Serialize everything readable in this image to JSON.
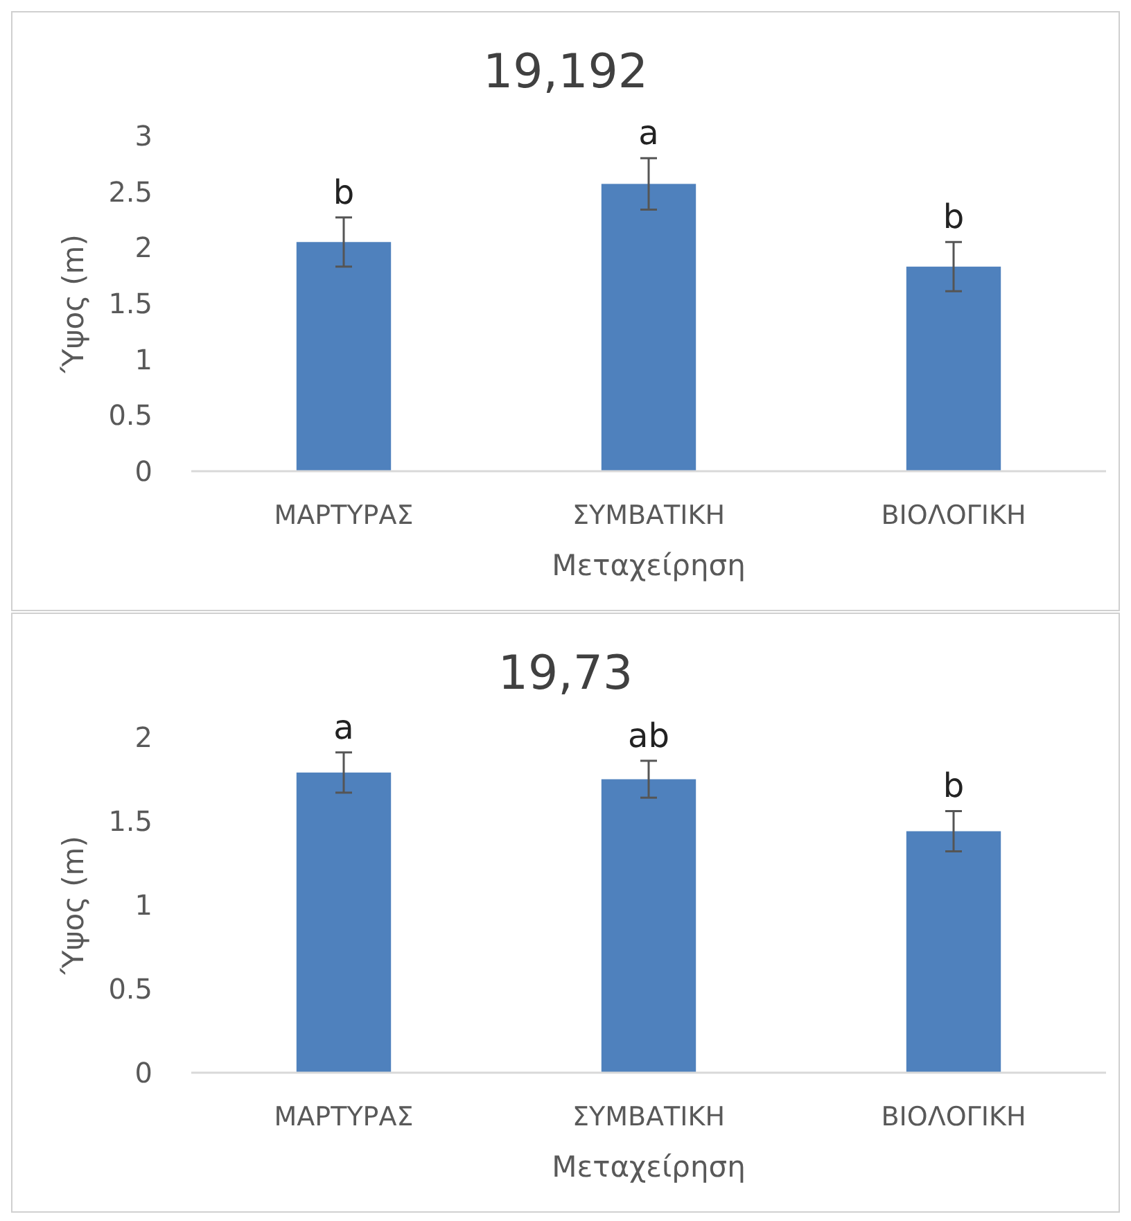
{
  "chart_data": [
    {
      "type": "bar",
      "title": "19,192",
      "xlabel": "Μεταχείρηση",
      "ylabel": "Ύψος (m)",
      "categories": [
        "ΜΑΡΤΥΡΑΣ",
        "ΣΥΜΒΑΤΙΚΗ",
        "ΒΙΟΛΟΓΙΚΗ"
      ],
      "values": [
        2.05,
        2.57,
        1.83
      ],
      "errors": [
        0.22,
        0.23,
        0.22
      ],
      "color": "#4f81bd",
      "ylim": [
        0,
        3
      ],
      "yticks": [
        0,
        {
          "value": 0.5,
          "label": "0.5"
        },
        1,
        {
          "value": 1.5,
          "label": "1.5"
        },
        2,
        {
          "value": 2.5,
          "label": "2.5"
        },
        3
      ],
      "grid": false,
      "annotations": [
        {
          "text": "b",
          "x": "ΜΑΡΤΥΡΑΣ",
          "y": 2.27
        },
        {
          "text": "a",
          "x": "ΣΥΜΒΑΤΙΚΗ",
          "y": 2.8
        },
        {
          "text": "b",
          "x": "ΒΙΟΛΟΓΙΚΗ",
          "y": 2.05
        }
      ]
    },
    {
      "type": "bar",
      "title": "19,73",
      "xlabel": "Μεταχείρηση",
      "ylabel": "Ύψος (m)",
      "categories": [
        "ΜΑΡΤΥΡΑΣ",
        "ΣΥΜΒΑΤΙΚΗ",
        "ΒΙΟΛΟΓΙΚΗ"
      ],
      "values": [
        1.79,
        1.75,
        1.44
      ],
      "errors": [
        0.12,
        0.11,
        0.12
      ],
      "color": "#4f81bd",
      "ylim": [
        0,
        2
      ],
      "yticks": [
        0,
        {
          "value": 0.5,
          "label": "0.5"
        },
        1,
        {
          "value": 1.5,
          "label": "1.5"
        },
        2
      ],
      "grid": false,
      "annotations": [
        {
          "text": "a",
          "x": "ΜΑΡΤΥΡΑΣ",
          "y": 1.91
        },
        {
          "text": "ab",
          "x": "ΣΥΜΒΑΤΙΚΗ",
          "y": 1.86
        },
        {
          "text": "b",
          "x": "ΒΙΟΛΟΓΙΚΗ",
          "y": 1.56
        }
      ]
    }
  ]
}
